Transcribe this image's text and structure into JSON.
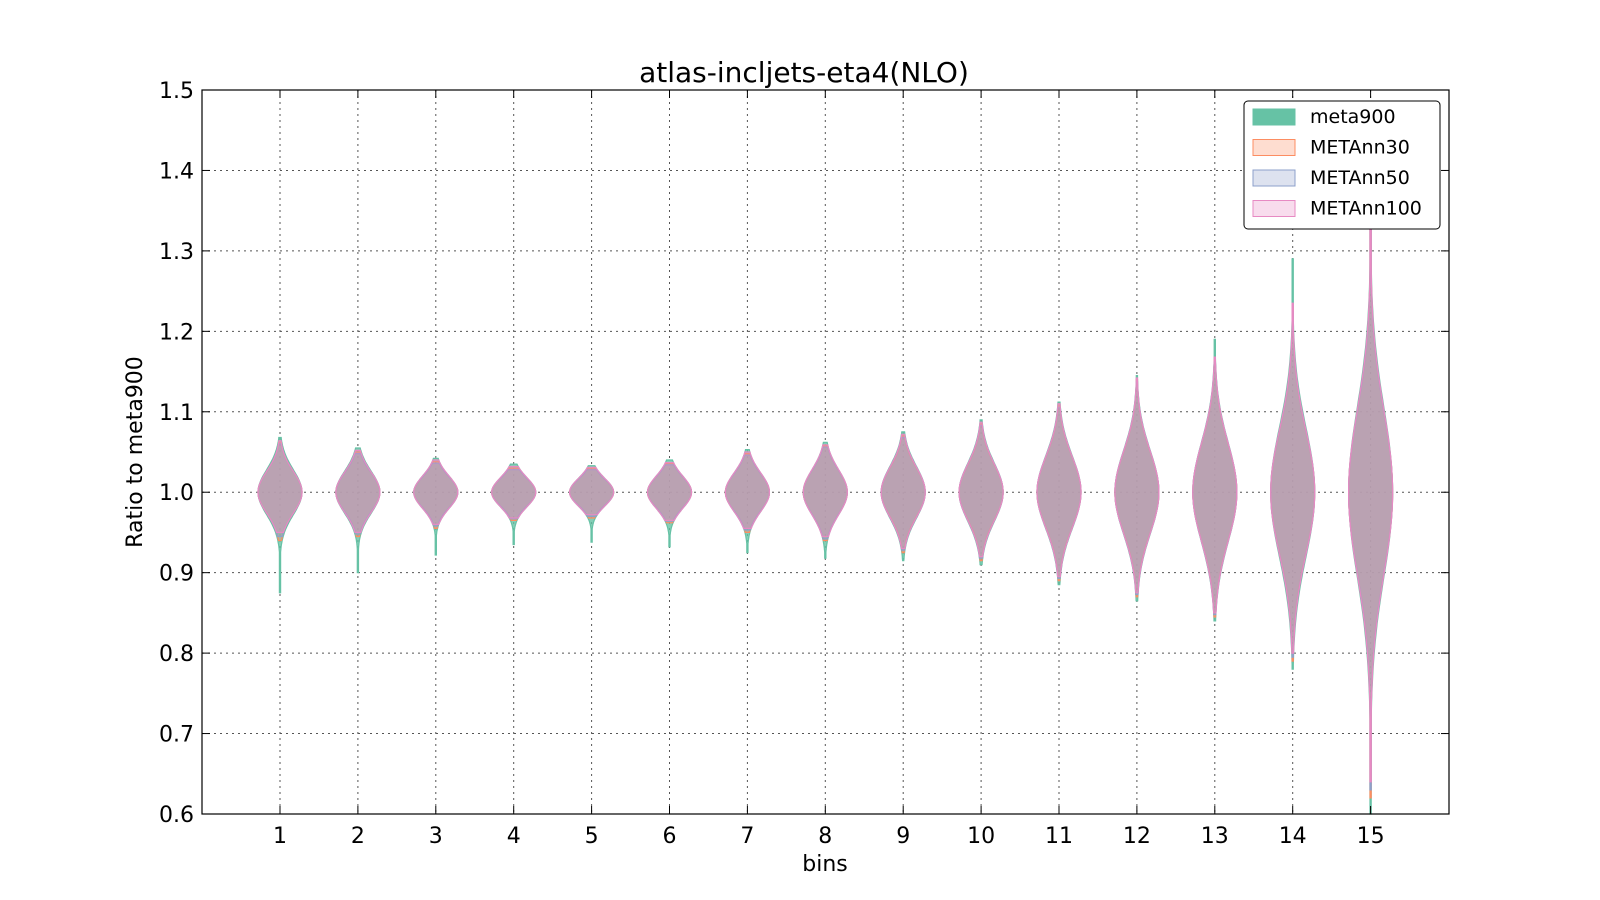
{
  "chart_data": {
    "type": "violin",
    "title": "atlas-incljets-eta4(NLO)",
    "xlabel": "bins",
    "ylabel": "Ratio to meta900",
    "ylim": [
      0.6,
      1.5
    ],
    "yticks": [
      "0.6",
      "0.7",
      "0.8",
      "0.9",
      "1.0",
      "1.1",
      "1.2",
      "1.3",
      "1.4",
      "1.5"
    ],
    "categories": [
      "1",
      "2",
      "3",
      "4",
      "5",
      "6",
      "7",
      "8",
      "9",
      "10",
      "11",
      "12",
      "13",
      "14",
      "15"
    ],
    "grid": true,
    "legend_position": "top-right",
    "series": [
      {
        "name": "meta900",
        "color": "#66c2a5",
        "style": "filled",
        "min": [
          0.875,
          0.9,
          0.922,
          0.935,
          0.938,
          0.932,
          0.925,
          0.918,
          0.915,
          0.91,
          0.885,
          0.865,
          0.84,
          0.78,
          0.6
        ],
        "max": [
          1.068,
          1.055,
          1.042,
          1.035,
          1.033,
          1.04,
          1.053,
          1.062,
          1.075,
          1.09,
          1.112,
          1.145,
          1.19,
          1.29,
          1.46
        ],
        "spread": [
          0.028,
          0.026,
          0.02,
          0.018,
          0.017,
          0.02,
          0.024,
          0.028,
          0.032,
          0.036,
          0.045,
          0.052,
          0.062,
          0.08,
          0.105
        ]
      },
      {
        "name": "METAnn30",
        "color": "#fc8d62",
        "style": "light",
        "min": [
          0.94,
          0.945,
          0.955,
          0.965,
          0.968,
          0.962,
          0.95,
          0.94,
          0.925,
          0.915,
          0.89,
          0.87,
          0.845,
          0.79,
          0.62
        ],
        "max": [
          1.062,
          1.05,
          1.038,
          1.03,
          1.03,
          1.036,
          1.048,
          1.058,
          1.07,
          1.085,
          1.108,
          1.14,
          1.165,
          1.23,
          1.35
        ],
        "spread": [
          0.026,
          0.024,
          0.019,
          0.017,
          0.016,
          0.019,
          0.023,
          0.027,
          0.03,
          0.034,
          0.043,
          0.05,
          0.06,
          0.075,
          0.1
        ]
      },
      {
        "name": "METAnn50",
        "color": "#8da0cb",
        "style": "light",
        "min": [
          0.945,
          0.948,
          0.958,
          0.967,
          0.97,
          0.964,
          0.953,
          0.942,
          0.928,
          0.918,
          0.893,
          0.873,
          0.848,
          0.795,
          0.63
        ],
        "max": [
          1.06,
          1.048,
          1.036,
          1.028,
          1.028,
          1.034,
          1.046,
          1.056,
          1.068,
          1.083,
          1.105,
          1.138,
          1.162,
          1.225,
          1.34
        ],
        "spread": [
          0.026,
          0.024,
          0.019,
          0.017,
          0.016,
          0.019,
          0.023,
          0.027,
          0.031,
          0.035,
          0.044,
          0.051,
          0.061,
          0.076,
          0.1
        ]
      },
      {
        "name": "METAnn100",
        "color": "#e78ac3",
        "style": "light",
        "min": [
          0.95,
          0.95,
          0.96,
          0.968,
          0.972,
          0.965,
          0.955,
          0.945,
          0.93,
          0.92,
          0.895,
          0.875,
          0.85,
          0.8,
          0.64
        ],
        "max": [
          1.064,
          1.052,
          1.04,
          1.032,
          1.031,
          1.037,
          1.05,
          1.059,
          1.072,
          1.087,
          1.11,
          1.142,
          1.168,
          1.235,
          1.36
        ],
        "spread": [
          0.026,
          0.025,
          0.02,
          0.018,
          0.017,
          0.02,
          0.024,
          0.028,
          0.031,
          0.035,
          0.044,
          0.051,
          0.061,
          0.077,
          0.102
        ]
      }
    ]
  }
}
